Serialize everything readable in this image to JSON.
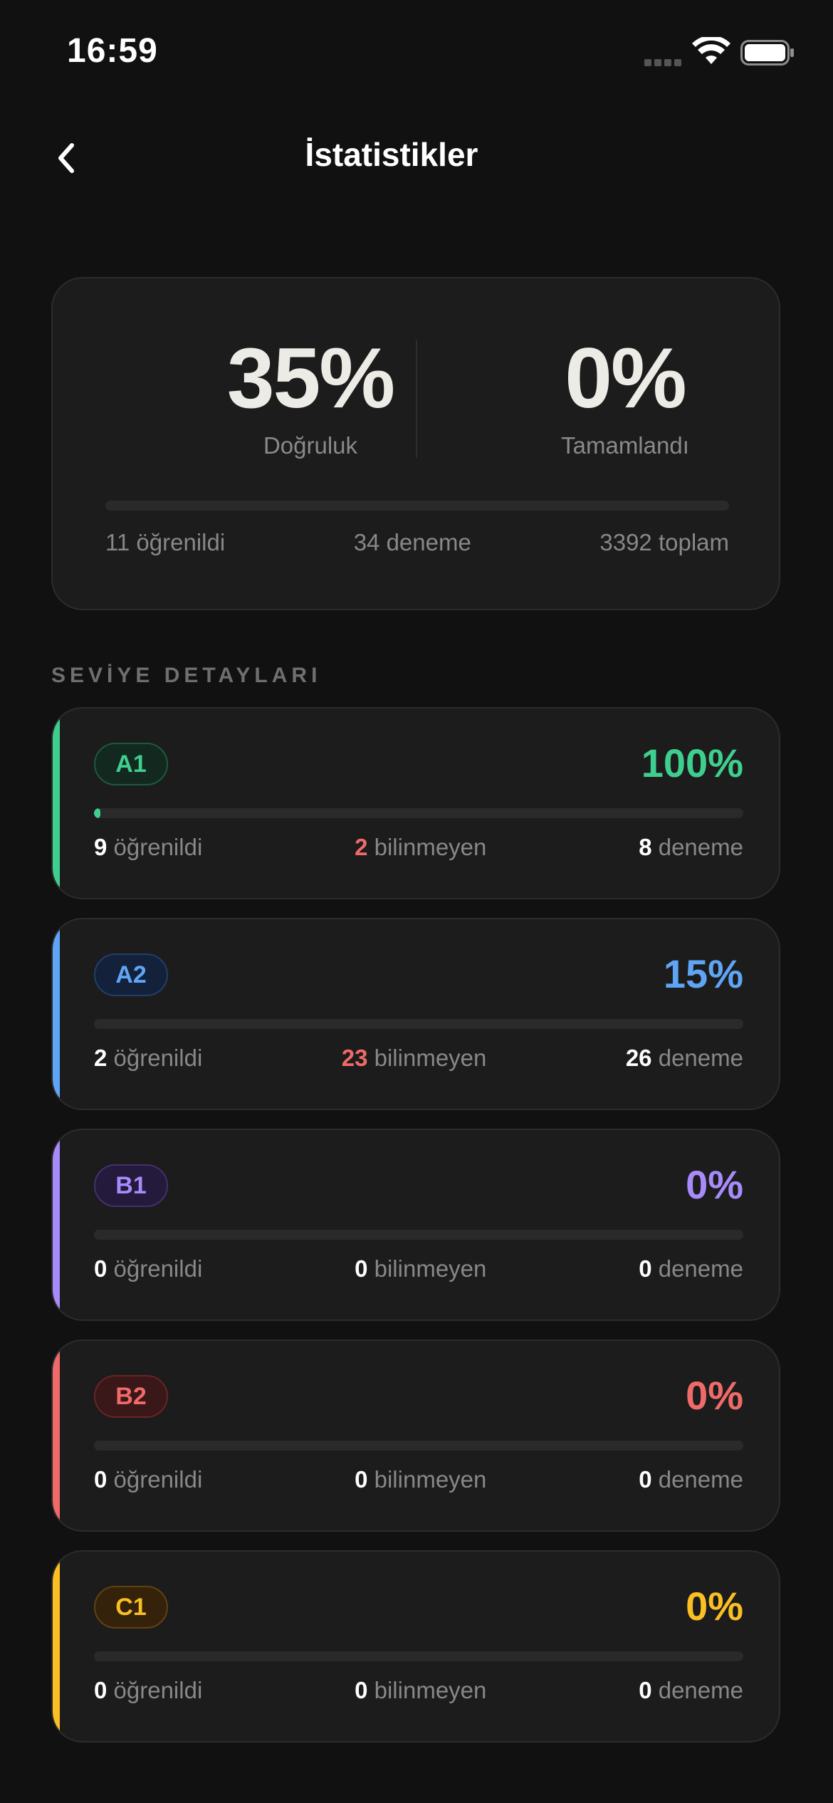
{
  "status_bar": {
    "time": "16:59"
  },
  "header": {
    "title": "İstatistikler"
  },
  "summary": {
    "accuracy_value": "35%",
    "accuracy_label": "Doğruluk",
    "completed_value": "0%",
    "completed_label": "Tamamlandı",
    "progress_fraction": 0.0,
    "learned_text": "11 öğrenildi",
    "attempts_text": "34 deneme",
    "total_text": "3392 toplam"
  },
  "section_title": "SEVİYE DETAYLARI",
  "labels": {
    "learned": "öğrenildi",
    "unknown": "bilinmeyen",
    "attempts": "deneme"
  },
  "levels": [
    {
      "code": "A1",
      "percent": "100%",
      "progress_fraction": 0.01,
      "learned": "9",
      "unknown": "2",
      "attempts": "8",
      "color": "#3ecf8e",
      "badge_bg": "#13291f",
      "badge_border": "#1d5a3c",
      "unknown_highlight": true
    },
    {
      "code": "A2",
      "percent": "15%",
      "progress_fraction": 0.0,
      "learned": "2",
      "unknown": "23",
      "attempts": "26",
      "color": "#5fa5f6",
      "badge_bg": "#14213a",
      "badge_border": "#233e6a",
      "unknown_highlight": true
    },
    {
      "code": "B1",
      "percent": "0%",
      "progress_fraction": 0.0,
      "learned": "0",
      "unknown": "0",
      "attempts": "0",
      "color": "#a78bfa",
      "badge_bg": "#231a3c",
      "badge_border": "#43306f",
      "unknown_highlight": false
    },
    {
      "code": "B2",
      "percent": "0%",
      "progress_fraction": 0.0,
      "learned": "0",
      "unknown": "0",
      "attempts": "0",
      "color": "#f06a6a",
      "badge_bg": "#3a1718",
      "badge_border": "#6a2426",
      "unknown_highlight": false
    },
    {
      "code": "C1",
      "percent": "0%",
      "progress_fraction": 0.0,
      "learned": "0",
      "unknown": "0",
      "attempts": "0",
      "color": "#fbbf24",
      "badge_bg": "#34230a",
      "badge_border": "#604212",
      "unknown_highlight": false
    }
  ]
}
